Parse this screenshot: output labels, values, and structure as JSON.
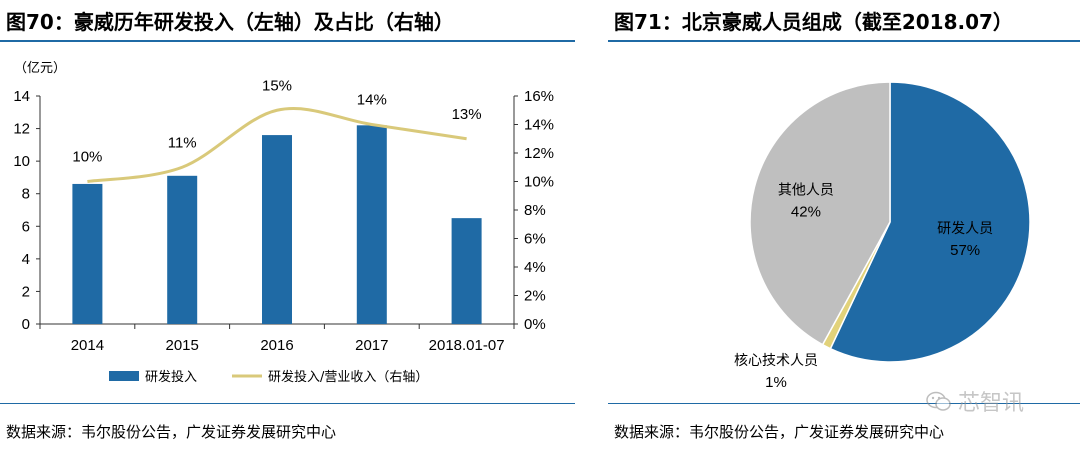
{
  "left": {
    "title": "图70：豪威历年研发投入（左轴）及占比（右轴）",
    "source": "数据来源：韦尔股份公告，广发证券发展研究中心"
  },
  "right": {
    "title": "图71：北京豪威人员组成（截至2018.07）",
    "source": "数据来源：韦尔股份公告，广发证券发展研究中心",
    "watermark": "芯智讯"
  },
  "colors": {
    "bar": "#1f6aa5",
    "line": "#d9c97a",
    "pie_research": "#1f6aa5",
    "pie_core": "#e2d27a",
    "pie_other": "#bfbfbf",
    "rule": "#1f6aa5"
  },
  "chart_data": [
    {
      "type": "bar",
      "categories": [
        "2014",
        "2015",
        "2016",
        "2017",
        "2018.01-07"
      ],
      "unit_label": "（亿元）",
      "ylim": [
        0,
        14
      ],
      "yticks": [
        0,
        2,
        4,
        6,
        8,
        10,
        12,
        14
      ],
      "y2lim": [
        0,
        16
      ],
      "y2ticks": [
        "0%",
        "2%",
        "4%",
        "6%",
        "8%",
        "10%",
        "12%",
        "14%",
        "16%"
      ],
      "series": [
        {
          "name": "研发投入",
          "type": "bar",
          "axis": "left",
          "values": [
            8.6,
            9.1,
            11.6,
            12.2,
            6.5
          ]
        },
        {
          "name": "研发投入/营业收入（右轴）",
          "type": "line",
          "axis": "right",
          "values": [
            10,
            11,
            15,
            14,
            13
          ],
          "labels": [
            "10%",
            "11%",
            "15%",
            "14%",
            "13%"
          ]
        }
      ],
      "grid": false,
      "legend": "bottom"
    },
    {
      "type": "pie",
      "slices": [
        {
          "name": "研发人员",
          "value": 57,
          "label": "57%"
        },
        {
          "name": "核心技术人员",
          "value": 1,
          "label": "1%"
        },
        {
          "name": "其他人员",
          "value": 42,
          "label": "42%"
        }
      ]
    }
  ]
}
